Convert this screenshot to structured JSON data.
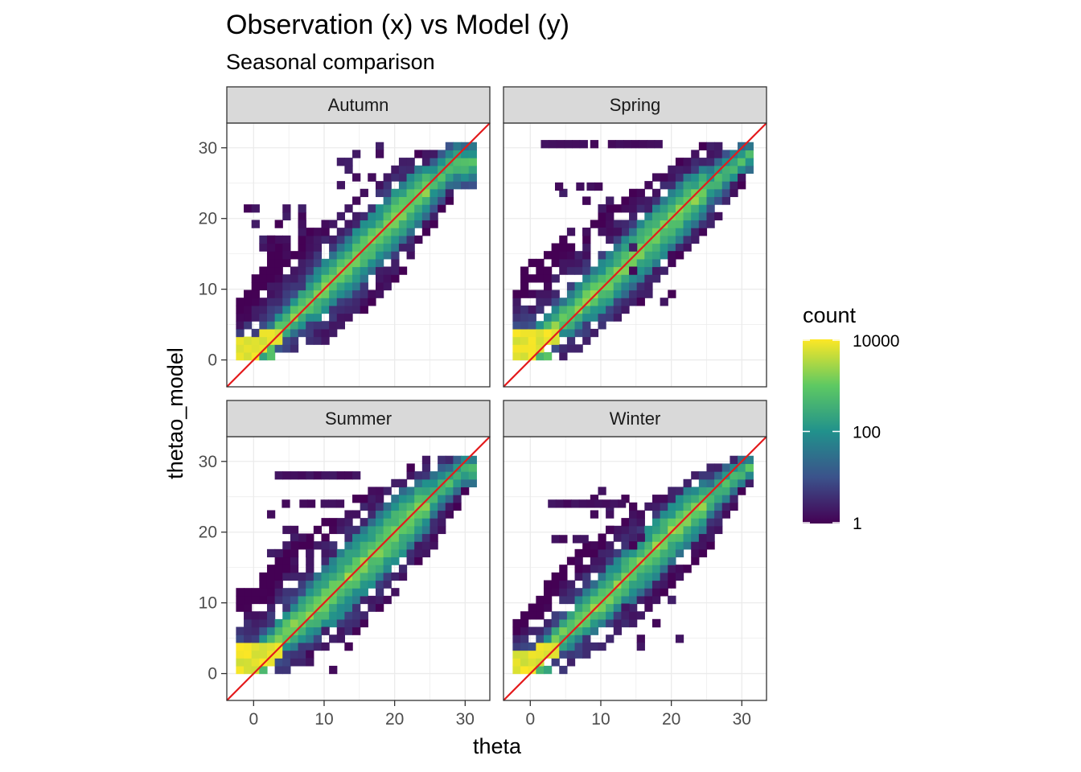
{
  "chart_data": {
    "type": "heatmap",
    "title": "Observation (x) vs Model (y)",
    "subtitle": "Seasonal comparison",
    "xlabel": "theta",
    "ylabel": "thetao_model",
    "xlim": [
      -3.8,
      33.5
    ],
    "ylim": [
      -3.8,
      33.5
    ],
    "x_ticks": [
      0,
      10,
      20,
      30
    ],
    "y_ticks": [
      0,
      10,
      20,
      30
    ],
    "grid": true,
    "bin_width": 1.1,
    "reference_line": {
      "slope": 1,
      "intercept": 0,
      "color": "#e41a1c"
    },
    "legend": {
      "title": "count",
      "scale": "log10",
      "range": [
        1,
        10000
      ],
      "breaks": [
        1,
        100,
        10000
      ],
      "break_labels": [
        "1",
        "100",
        "10000"
      ],
      "palette": [
        "#440154",
        "#3b528b",
        "#21918c",
        "#5ec962",
        "#fde725"
      ],
      "position": "right"
    },
    "facets": [
      {
        "label": "Autumn",
        "core_band": [
          {
            "x": 0,
            "lo": 0,
            "hi": 2.5
          },
          {
            "x": 10,
            "lo": 6,
            "hi": 14
          },
          {
            "x": 20,
            "lo": 15.5,
            "hi": 24.5
          },
          {
            "x": 28,
            "lo": 24,
            "hi": 30.5
          }
        ],
        "outer_band": [
          {
            "x": -2.5,
            "lo": 0,
            "hi": 8
          },
          {
            "x": 2,
            "lo": 0,
            "hi": 15
          },
          {
            "x": 10,
            "lo": 2,
            "hi": 19
          },
          {
            "x": 20,
            "lo": 11,
            "hi": 28
          },
          {
            "x": 30,
            "lo": 26,
            "hi": 30.5
          }
        ],
        "noise_clusters": [
          {
            "x": 3,
            "y": 17,
            "n": 20
          },
          {
            "x": 16,
            "y": 26,
            "n": 10
          }
        ]
      },
      {
        "label": "Spring",
        "core_band": [
          {
            "x": 0,
            "lo": 0,
            "hi": 4
          },
          {
            "x": 10,
            "lo": 6,
            "hi": 14
          },
          {
            "x": 20,
            "lo": 15.5,
            "hi": 24.5
          },
          {
            "x": 30,
            "lo": 26,
            "hi": 30.5
          }
        ],
        "outer_band": [
          {
            "x": -2.5,
            "lo": 0,
            "hi": 12
          },
          {
            "x": 5,
            "lo": 0,
            "hi": 17
          },
          {
            "x": 15,
            "lo": 8,
            "hi": 24
          },
          {
            "x": 25,
            "lo": 18,
            "hi": 30.5
          },
          {
            "x": 31,
            "lo": 26,
            "hi": 30.5
          }
        ],
        "noise_clusters": [
          {
            "x": 8,
            "y": 20,
            "n": 12
          },
          {
            "x": 18,
            "y": 12,
            "n": 8
          }
        ]
      },
      {
        "label": "Summer",
        "core_band": [
          {
            "x": 0,
            "lo": 0,
            "hi": 4
          },
          {
            "x": 10,
            "lo": 5.5,
            "hi": 15
          },
          {
            "x": 20,
            "lo": 15,
            "hi": 25
          },
          {
            "x": 29,
            "lo": 26,
            "hi": 30.5
          }
        ],
        "outer_band": [
          {
            "x": -2.5,
            "lo": 0,
            "hi": 11
          },
          {
            "x": 5,
            "lo": 0,
            "hi": 18
          },
          {
            "x": 15,
            "lo": 6,
            "hi": 25
          },
          {
            "x": 25,
            "lo": 17,
            "hi": 30.5
          },
          {
            "x": 31,
            "lo": 28,
            "hi": 30.5
          }
        ],
        "noise_clusters": [
          {
            "x": 6,
            "y": 20,
            "n": 12
          },
          {
            "x": 10,
            "y": 2,
            "n": 8
          }
        ]
      },
      {
        "label": "Winter",
        "core_band": [
          {
            "x": 0,
            "lo": 0,
            "hi": 3
          },
          {
            "x": 10,
            "lo": 6,
            "hi": 14
          },
          {
            "x": 20,
            "lo": 15.5,
            "hi": 24.5
          },
          {
            "x": 30,
            "lo": 26.5,
            "hi": 30.5
          }
        ],
        "outer_band": [
          {
            "x": -2.5,
            "lo": 0,
            "hi": 7
          },
          {
            "x": 5,
            "lo": 0,
            "hi": 16
          },
          {
            "x": 15,
            "lo": 7,
            "hi": 23
          },
          {
            "x": 25,
            "lo": 17,
            "hi": 29
          },
          {
            "x": 30,
            "lo": 26,
            "hi": 30.5
          }
        ],
        "noise_clusters": [
          {
            "x": 12,
            "y": 21,
            "n": 10
          },
          {
            "x": 17,
            "y": 7,
            "n": 8
          }
        ]
      }
    ],
    "streaks": [
      {
        "facet": 1,
        "y": 30,
        "segments": [
          [
            1.5,
            7
          ],
          [
            8.5,
            9
          ],
          [
            11,
            18
          ]
        ]
      },
      {
        "facet": 1,
        "y": 24,
        "segments": [
          [
            3.5,
            4.5
          ],
          [
            6.5,
            7
          ],
          [
            8,
            9.5
          ]
        ]
      },
      {
        "facet": 2,
        "y": 27.5,
        "segments": [
          [
            3,
            14
          ]
        ]
      },
      {
        "facet": 2,
        "y": 23.5,
        "segments": [
          [
            4,
            5
          ],
          [
            6.5,
            8
          ],
          [
            9.5,
            12
          ]
        ]
      },
      {
        "facet": 3,
        "y": 23.5,
        "segments": [
          [
            2.5,
            13
          ]
        ]
      },
      {
        "facet": 3,
        "y": 18.5,
        "segments": [
          [
            3,
            5
          ],
          [
            6,
            7.5
          ]
        ]
      }
    ]
  }
}
